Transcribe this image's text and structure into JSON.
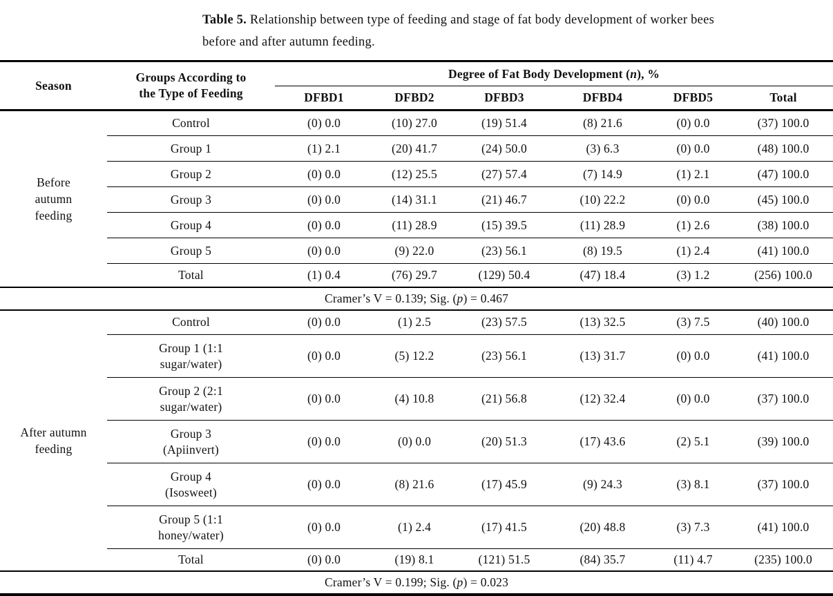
{
  "caption": {
    "label": "Table 5.",
    "line1": "Relationship between type of feeding and stage of fat body development of worker bees",
    "line2": "before and after autumn feeding."
  },
  "table": {
    "header": {
      "season": "Season",
      "groups_lines": [
        "Groups According to",
        "the Type of Feeding"
      ],
      "degree": {
        "prefix": "Degree of Fat Body Development (",
        "italic": "n",
        "suffix": "), %"
      },
      "subcolumns": [
        "DFBD1",
        "DFBD2",
        "DFBD3",
        "DFBD4",
        "DFBD5",
        "Total"
      ]
    },
    "sections": [
      {
        "season_lines": [
          "Before",
          "autumn",
          "feeding"
        ],
        "rows": [
          {
            "group_lines": [
              "Control"
            ],
            "cells": [
              "(0) 0.0",
              "(10) 27.0",
              "(19) 51.4",
              "(8) 21.6",
              "(0) 0.0",
              "(37) 100.0"
            ]
          },
          {
            "group_lines": [
              "Group 1"
            ],
            "cells": [
              "(1) 2.1",
              "(20) 41.7",
              "(24) 50.0",
              "(3) 6.3",
              "(0) 0.0",
              "(48) 100.0"
            ]
          },
          {
            "group_lines": [
              "Group 2"
            ],
            "cells": [
              "(0) 0.0",
              "(12) 25.5",
              "(27) 57.4",
              "(7) 14.9",
              "(1) 2.1",
              "(47) 100.0"
            ]
          },
          {
            "group_lines": [
              "Group 3"
            ],
            "cells": [
              "(0) 0.0",
              "(14) 31.1",
              "(21) 46.7",
              "(10) 22.2",
              "(0) 0.0",
              "(45) 100.0"
            ]
          },
          {
            "group_lines": [
              "Group 4"
            ],
            "cells": [
              "(0) 0.0",
              "(11) 28.9",
              "(15) 39.5",
              "(11) 28.9",
              "(1) 2.6",
              "(38) 100.0"
            ]
          },
          {
            "group_lines": [
              "Group 5"
            ],
            "cells": [
              "(0) 0.0",
              "(9) 22.0",
              "(23) 56.1",
              "(8) 19.5",
              "(1) 2.4",
              "(41) 100.0"
            ]
          },
          {
            "group_lines": [
              "Total"
            ],
            "cells": [
              "(1) 0.4",
              "(76) 29.7",
              "(129) 50.4",
              "(47) 18.4",
              "(3) 1.2",
              "(256) 100.0"
            ]
          }
        ],
        "stat": {
          "prefix": "Cramer’s V = 0.139; Sig. (",
          "italic": "p",
          "suffix": ") = 0.467"
        }
      },
      {
        "season_lines": [
          "After autumn",
          "feeding"
        ],
        "rows": [
          {
            "group_lines": [
              "Control"
            ],
            "cells": [
              "(0) 0.0",
              "(1) 2.5",
              "(23) 57.5",
              "(13) 32.5",
              "(3) 7.5",
              "(40) 100.0"
            ]
          },
          {
            "group_lines": [
              "Group 1 (1:1",
              "sugar/water)"
            ],
            "cells": [
              "(0) 0.0",
              "(5) 12.2",
              "(23) 56.1",
              "(13) 31.7",
              "(0) 0.0",
              "(41) 100.0"
            ]
          },
          {
            "group_lines": [
              "Group 2 (2:1",
              "sugar/water)"
            ],
            "cells": [
              "(0) 0.0",
              "(4) 10.8",
              "(21) 56.8",
              "(12) 32.4",
              "(0) 0.0",
              "(37) 100.0"
            ]
          },
          {
            "group_lines": [
              "Group 3",
              "(Apiinvert)"
            ],
            "cells": [
              "(0) 0.0",
              "(0) 0.0",
              "(20) 51.3",
              "(17) 43.6",
              "(2) 5.1",
              "(39) 100.0"
            ]
          },
          {
            "group_lines": [
              "Group 4",
              "(Isosweet)"
            ],
            "cells": [
              "(0) 0.0",
              "(8) 21.6",
              "(17) 45.9",
              "(9) 24.3",
              "(3) 8.1",
              "(37) 100.0"
            ]
          },
          {
            "group_lines": [
              "Group 5 (1:1",
              "honey/water)"
            ],
            "cells": [
              "(0) 0.0",
              "(1) 2.4",
              "(17) 41.5",
              "(20) 48.8",
              "(3) 7.3",
              "(41) 100.0"
            ]
          },
          {
            "group_lines": [
              "Total"
            ],
            "cells": [
              "(0) 0.0",
              "(19) 8.1",
              "(121) 51.5",
              "(84) 35.7",
              "(11) 4.7",
              "(235) 100.0"
            ]
          }
        ],
        "stat": {
          "prefix": "Cramer’s V = 0.199; Sig. (",
          "italic": "p",
          "suffix": ") = 0.023"
        }
      }
    ]
  }
}
